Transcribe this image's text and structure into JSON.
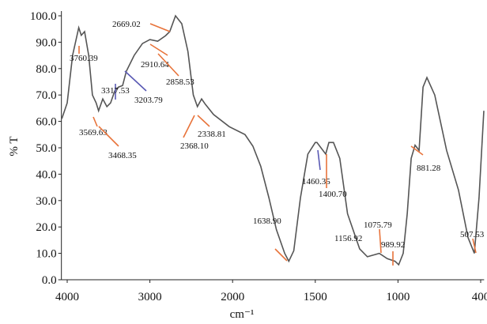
{
  "chart_data": {
    "type": "line",
    "ylabel": "% T",
    "xlabel": "cm⁻¹",
    "color": "#555555",
    "x": [
      4065,
      4000,
      3935,
      3860,
      3830,
      3790,
      3740,
      3695,
      3650,
      3620,
      3570,
      3520,
      3475,
      3425,
      3380,
      3330,
      3285,
      3190,
      3090,
      3000,
      2905,
      2810,
      2760,
      2690,
      2615,
      2540,
      2475,
      2425,
      2375,
      2330,
      2230,
      2040,
      1925,
      1877,
      1830,
      1780,
      1735,
      1685,
      1660,
      1630,
      1590,
      1545,
      1500,
      1490,
      1437,
      1418,
      1390,
      1352,
      1305,
      1232,
      1185,
      1113,
      1065,
      1018,
      995,
      962,
      933,
      904,
      876,
      847,
      818,
      790,
      733,
      647,
      561,
      492,
      446,
      412,
      377
    ],
    "values": [
      61,
      67,
      85,
      95.5,
      92.6,
      94,
      85,
      70,
      67,
      64,
      68.5,
      65.6,
      67,
      71.5,
      73,
      73.6,
      79,
      85,
      89.5,
      91,
      90.4,
      92.5,
      94,
      100,
      97,
      86.5,
      70,
      65.6,
      68.5,
      66.5,
      62.6,
      58,
      55,
      50.6,
      43,
      31,
      19,
      10,
      7,
      11,
      31,
      47.6,
      52,
      52,
      47.6,
      52,
      52,
      46,
      25,
      11.7,
      8.7,
      10,
      8,
      7,
      5.7,
      10,
      25,
      46,
      51,
      49,
      73,
      76.6,
      70,
      49,
      34,
      16,
      10,
      31,
      64
    ],
    "xlim": [
      4070,
      375
    ],
    "ylim": [
      0,
      100
    ],
    "xticks": [
      4000,
      3000,
      2000,
      1500,
      1000,
      400
    ],
    "yticks": [
      {
        "value": 0,
        "label": "0.0"
      },
      {
        "value": 10,
        "label": "10.0"
      },
      {
        "value": 20,
        "label": "20.0"
      },
      {
        "value": 30,
        "label": "30.0"
      },
      {
        "value": 40,
        "label": "40.0"
      },
      {
        "value": 50,
        "label": "50.0"
      },
      {
        "value": 60,
        "label": "60.0"
      },
      {
        "value": 70,
        "label": "70.0"
      },
      {
        "value": 80,
        "label": "80.0"
      },
      {
        "value": 90,
        "label": "90.0"
      },
      {
        "value": 100,
        "label": "100.0"
      }
    ],
    "annotations": [
      "2669.02",
      "3760.39",
      "2910.64",
      "2858.53",
      "3203.79",
      "3317.53",
      "3569.63",
      "3468.35",
      "2368.10",
      "2338.81",
      "1638.90",
      "1460.35",
      "1400.70",
      "1156.92",
      "1075.79",
      "989.92",
      "881.28",
      "507.53"
    ]
  }
}
